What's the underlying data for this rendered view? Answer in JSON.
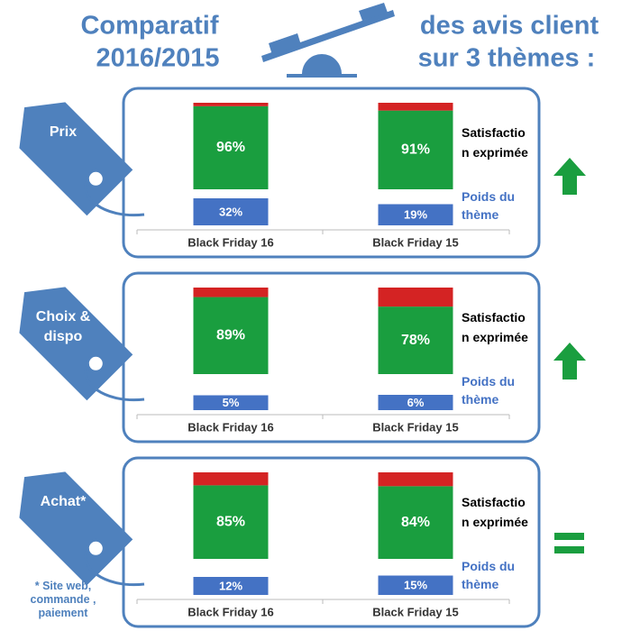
{
  "header": {
    "title_left": [
      "Comparatif",
      "2016/2015"
    ],
    "title_right": [
      "des avis client",
      "sur 3 thèmes :"
    ]
  },
  "chart_data": [
    {
      "type": "stacked_bar",
      "tag": "Prix",
      "categories": [
        "Black Friday 16",
        "Black Friday 15"
      ],
      "series": [
        {
          "name": "Satisfaction exprimée",
          "color": "#1a9e3f",
          "values": [
            96,
            91
          ],
          "value_labels": [
            "96%",
            "91%"
          ]
        },
        {
          "color": "#d42323",
          "values": [
            4,
            9
          ]
        }
      ],
      "weight": {
        "name": "Poids du thème",
        "color": "#4472c4",
        "values": [
          32,
          19
        ],
        "value_labels": [
          "32%",
          "19%"
        ]
      },
      "trend": "up"
    },
    {
      "type": "stacked_bar",
      "tag": "Choix & dispo",
      "categories": [
        "Black Friday 16",
        "Black Friday 15"
      ],
      "series": [
        {
          "name": "Satisfaction exprimée",
          "color": "#1a9e3f",
          "values": [
            89,
            78
          ],
          "value_labels": [
            "89%",
            "78%"
          ]
        },
        {
          "color": "#d42323",
          "values": [
            11,
            22
          ]
        }
      ],
      "weight": {
        "name": "Poids du thème",
        "color": "#4472c4",
        "values": [
          5,
          6
        ],
        "value_labels": [
          "5%",
          "6%"
        ]
      },
      "trend": "up"
    },
    {
      "type": "stacked_bar",
      "tag": "Achat*",
      "categories": [
        "Black Friday 16",
        "Black Friday 15"
      ],
      "series": [
        {
          "name": "Satisfaction exprimée",
          "color": "#1a9e3f",
          "values": [
            85,
            84
          ],
          "value_labels": [
            "85%",
            "84%"
          ]
        },
        {
          "color": "#d42323",
          "values": [
            15,
            16
          ]
        }
      ],
      "weight": {
        "name": "Poids du thème",
        "color": "#4472c4",
        "values": [
          12,
          15
        ],
        "value_labels": [
          "12%",
          "15%"
        ]
      },
      "trend": "equal"
    }
  ],
  "footnote": "* Site web, commande , paiement"
}
